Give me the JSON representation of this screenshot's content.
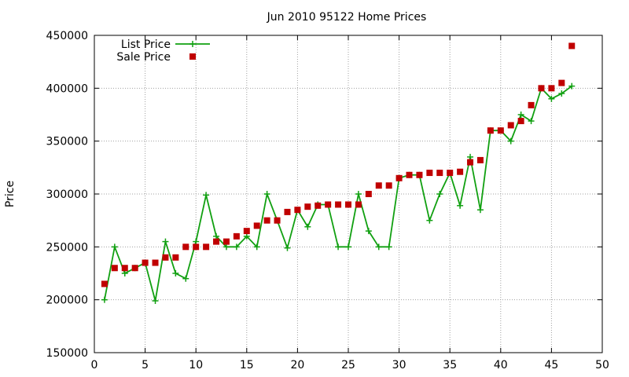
{
  "chart_data": {
    "type": "line",
    "title": "Jun 2010 95122 Home Prices",
    "xlabel": "",
    "ylabel": "Price",
    "xlim": [
      0,
      50
    ],
    "ylim": [
      150000,
      450000
    ],
    "x_ticks": [
      0,
      5,
      10,
      15,
      20,
      25,
      30,
      35,
      40,
      45,
      50
    ],
    "y_ticks": [
      150000,
      200000,
      250000,
      300000,
      350000,
      400000,
      450000
    ],
    "grid": true,
    "legend_position": "top-left",
    "x": [
      1,
      2,
      3,
      4,
      5,
      6,
      7,
      8,
      9,
      10,
      11,
      12,
      13,
      14,
      15,
      16,
      17,
      18,
      19,
      20,
      21,
      22,
      23,
      24,
      25,
      26,
      27,
      28,
      29,
      30,
      31,
      32,
      33,
      34,
      35,
      36,
      37,
      38,
      39,
      40,
      41,
      42,
      43,
      44,
      45,
      46,
      47
    ],
    "series": [
      {
        "name": "List Price",
        "style": "lines+crosses",
        "color": "#11a011",
        "values": [
          200000,
          250000,
          225000,
          230000,
          235000,
          199000,
          255000,
          225000,
          220000,
          255000,
          299000,
          260000,
          250000,
          250000,
          260000,
          250000,
          300000,
          275000,
          249000,
          285000,
          269000,
          290000,
          290000,
          250000,
          250000,
          300000,
          265000,
          250000,
          250000,
          315000,
          318000,
          318000,
          275000,
          300000,
          320000,
          289000,
          335000,
          285000,
          360000,
          360000,
          350000,
          375000,
          369000,
          400000,
          390000,
          395000,
          402000
        ]
      },
      {
        "name": "Sale Price",
        "style": "squares",
        "color": "#c00000",
        "values": [
          215000,
          230000,
          230000,
          230000,
          235000,
          235000,
          240000,
          240000,
          250000,
          250000,
          250000,
          255000,
          255000,
          260000,
          265000,
          270000,
          275000,
          275000,
          283000,
          285000,
          288000,
          289000,
          290000,
          290000,
          290000,
          290000,
          300000,
          308000,
          308000,
          315000,
          318000,
          318000,
          320000,
          320000,
          320000,
          321000,
          330000,
          332000,
          360000,
          360000,
          365000,
          369000,
          384000,
          400000,
          400000,
          405000,
          440000
        ]
      }
    ]
  }
}
